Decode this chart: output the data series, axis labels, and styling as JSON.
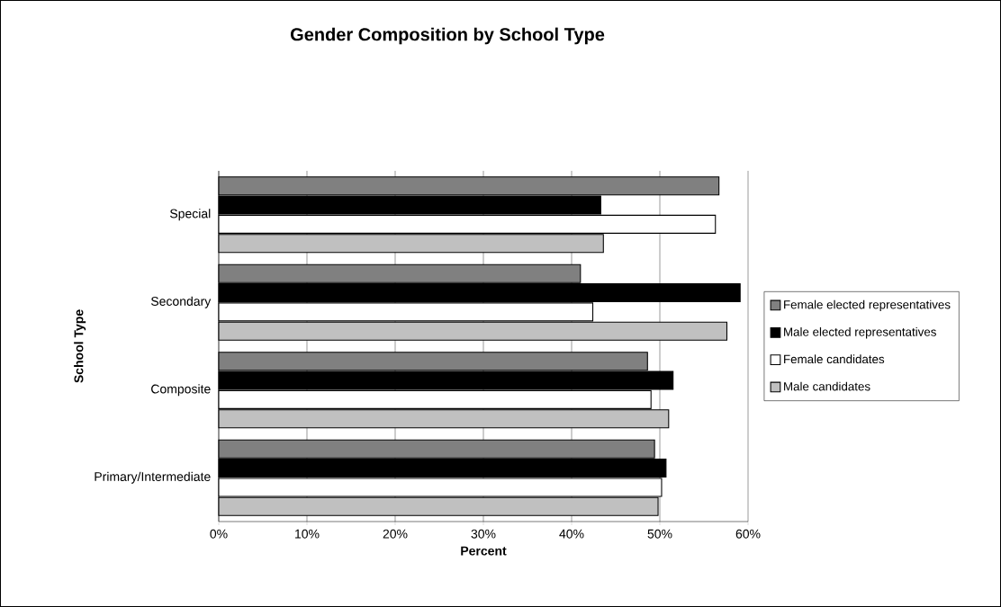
{
  "chart_data": {
    "type": "bar",
    "orientation": "horizontal",
    "title": "Gender Composition by School Type",
    "xlabel": "Percent",
    "ylabel": "School Type",
    "categories": [
      "Special",
      "Secondary",
      "Composite",
      "Primary/Intermediate"
    ],
    "series": [
      {
        "name": "Female elected representatives",
        "color": "#808080",
        "values": [
          56.7,
          41.0,
          48.6,
          49.4
        ]
      },
      {
        "name": "Male elected representatives",
        "color": "#000000",
        "values": [
          43.3,
          59.1,
          51.5,
          50.7
        ]
      },
      {
        "name": "Female candidates",
        "color": "#ffffff",
        "values": [
          56.3,
          42.4,
          49.0,
          50.2
        ]
      },
      {
        "name": "Male candidates",
        "color": "#c0c0c0",
        "values": [
          43.6,
          57.6,
          51.0,
          49.8
        ]
      }
    ],
    "xlim": [
      0,
      60
    ],
    "xticks": [
      {
        "value": 0,
        "label": "0%"
      },
      {
        "value": 10,
        "label": "10%"
      },
      {
        "value": 20,
        "label": "20%"
      },
      {
        "value": 30,
        "label": "30%"
      },
      {
        "value": 40,
        "label": "40%"
      },
      {
        "value": 50,
        "label": "50%"
      },
      {
        "value": 60,
        "label": "60%"
      }
    ],
    "grid": "x",
    "legend": "right"
  }
}
